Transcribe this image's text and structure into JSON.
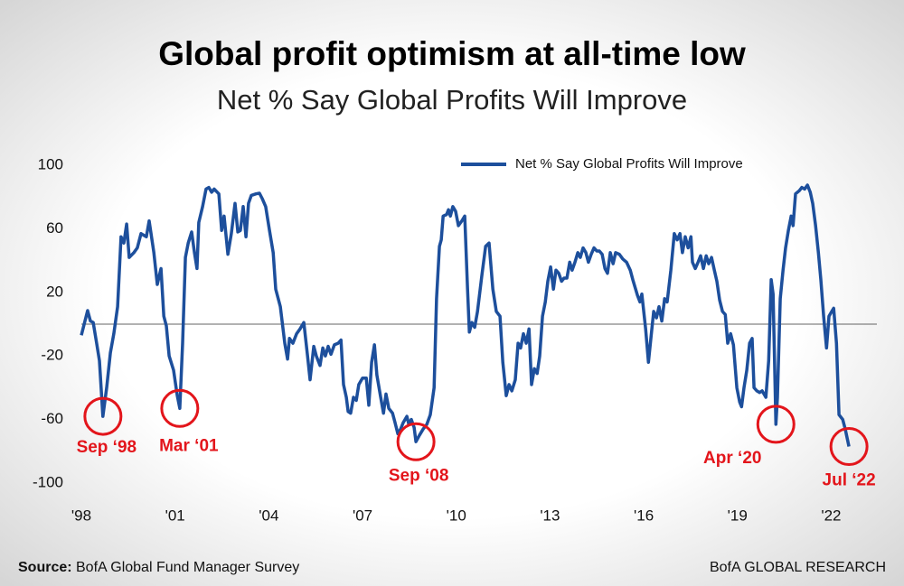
{
  "chart_data": {
    "type": "line",
    "title": "Global profit optimism at all-time low",
    "subtitle": "Net % Say Global Profits Will Improve",
    "source_label": "Source:",
    "source": "BofA Global Fund Manager Survey",
    "brand": "BofA GLOBAL RESEARCH",
    "legend": "top-right",
    "grid": false,
    "reference_line": 0,
    "xlim": [
      1998,
      2023
    ],
    "ylim": [
      -100,
      100
    ],
    "yticks": [
      100,
      60,
      20,
      -20,
      -60,
      -100
    ],
    "xticks": [
      {
        "value": 1998,
        "label": "'98"
      },
      {
        "value": 2001,
        "label": "'01"
      },
      {
        "value": 2004,
        "label": "'04"
      },
      {
        "value": 2007,
        "label": "'07"
      },
      {
        "value": 2010,
        "label": "'10"
      },
      {
        "value": 2013,
        "label": "'13"
      },
      {
        "value": 2016,
        "label": "'16"
      },
      {
        "value": 2019,
        "label": "'19"
      },
      {
        "value": 2022,
        "label": "'22"
      }
    ],
    "x": [
      1998.0,
      1998.2,
      1998.29,
      1998.38,
      1998.49,
      1998.58,
      1998.69,
      1998.81,
      1998.93,
      1999.04,
      1999.16,
      1999.27,
      1999.36,
      1999.45,
      1999.53,
      1999.68,
      1999.79,
      1999.91,
      2000.08,
      2000.17,
      2000.32,
      2000.43,
      2000.55,
      2000.64,
      2000.72,
      2000.81,
      2000.95,
      2001.07,
      2001.15,
      2001.24,
      2001.33,
      2001.42,
      2001.53,
      2001.62,
      2001.7,
      2001.76,
      2001.88,
      2001.99,
      2002.08,
      2002.17,
      2002.25,
      2002.4,
      2002.49,
      2002.57,
      2002.69,
      2002.8,
      2002.92,
      2003.01,
      2003.09,
      2003.18,
      2003.27,
      2003.35,
      2003.44,
      2003.59,
      2003.7,
      2003.79,
      2003.9,
      2004.02,
      2004.14,
      2004.22,
      2004.37,
      2004.51,
      2004.6,
      2004.66,
      2004.77,
      2004.89,
      2005.0,
      2005.12,
      2005.24,
      2005.32,
      2005.44,
      2005.52,
      2005.64,
      2005.73,
      2005.81,
      2005.9,
      2005.99,
      2006.1,
      2006.22,
      2006.31,
      2006.39,
      2006.48,
      2006.54,
      2006.62,
      2006.71,
      2006.8,
      2006.88,
      2007.0,
      2007.12,
      2007.2,
      2007.29,
      2007.38,
      2007.46,
      2007.58,
      2007.67,
      2007.75,
      2007.84,
      2007.96,
      2008.04,
      2008.13,
      2008.22,
      2008.3,
      2008.42,
      2008.48,
      2008.56,
      2008.65,
      2008.71,
      2008.82,
      2008.94,
      2009.06,
      2009.17,
      2009.29,
      2009.37,
      2009.46,
      2009.52,
      2009.58,
      2009.69,
      2009.75,
      2009.81,
      2009.89,
      2009.98,
      2010.07,
      2010.18,
      2010.27,
      2010.36,
      2010.42,
      2010.5,
      2010.59,
      2010.68,
      2010.82,
      2010.94,
      2011.05,
      2011.17,
      2011.28,
      2011.4,
      2011.49,
      2011.6,
      2011.69,
      2011.78,
      2011.89,
      2011.98,
      2012.06,
      2012.15,
      2012.24,
      2012.33,
      2012.41,
      2012.5,
      2012.59,
      2012.67,
      2012.76,
      2012.85,
      2012.93,
      2013.02,
      2013.11,
      2013.19,
      2013.28,
      2013.37,
      2013.45,
      2013.54,
      2013.63,
      2013.71,
      2013.8,
      2013.89,
      2013.97,
      2014.06,
      2014.15,
      2014.23,
      2014.32,
      2014.41,
      2014.5,
      2014.58,
      2014.67,
      2014.76,
      2014.84,
      2014.93,
      2015.02,
      2015.1,
      2015.22,
      2015.33,
      2015.45,
      2015.57,
      2015.65,
      2015.8,
      2015.88,
      2015.94,
      2016.06,
      2016.15,
      2016.23,
      2016.32,
      2016.41,
      2016.49,
      2016.58,
      2016.67,
      2016.75,
      2016.87,
      2016.98,
      2017.07,
      2017.16,
      2017.24,
      2017.33,
      2017.42,
      2017.51,
      2017.56,
      2017.65,
      2017.74,
      2017.82,
      2017.91,
      2018.0,
      2018.08,
      2018.17,
      2018.26,
      2018.34,
      2018.43,
      2018.52,
      2018.61,
      2018.69,
      2018.78,
      2018.87,
      2018.98,
      2019.07,
      2019.13,
      2019.21,
      2019.3,
      2019.39,
      2019.47,
      2019.53,
      2019.62,
      2019.71,
      2019.79,
      2019.91,
      2020.0,
      2020.08,
      2020.14,
      2020.23,
      2020.28,
      2020.37,
      2020.46,
      2020.54,
      2020.63,
      2020.72,
      2020.78,
      2020.86,
      2020.98,
      2021.06,
      2021.15,
      2021.24,
      2021.33,
      2021.41,
      2021.5,
      2021.59,
      2021.67,
      2021.76,
      2021.85,
      2021.93,
      2022.02,
      2022.08,
      2022.17,
      2022.25,
      2022.37,
      2022.45,
      2022.57
    ],
    "series": [
      {
        "name": "Net % Say Global Profits Will Improve",
        "color": "#1d4f9c",
        "values": [
          -7,
          8.5,
          2,
          1,
          -12,
          -23,
          -58,
          -40,
          -18,
          -6,
          11,
          55,
          51,
          63,
          42,
          45,
          48,
          57,
          55,
          65,
          45,
          25,
          35,
          5,
          -1,
          -20,
          -29,
          -45,
          -53,
          -12,
          42,
          51,
          58,
          45,
          35,
          64,
          74,
          85,
          86,
          83,
          85,
          82,
          59,
          68,
          44,
          57,
          76,
          58,
          59,
          74,
          55,
          76,
          81,
          82,
          82.4,
          79,
          74,
          59,
          45,
          22,
          11,
          -12,
          -22,
          -9,
          -12,
          -6,
          -3,
          1,
          -20,
          -35,
          -14,
          -20,
          -26,
          -15,
          -20,
          -14,
          -19,
          -13,
          -12,
          -10,
          -38,
          -46,
          -55,
          -56,
          -46,
          -48,
          -38,
          -34,
          -34,
          -51,
          -24,
          -13,
          -32,
          -46,
          -56,
          -44,
          -53,
          -56,
          -62,
          -69,
          -66,
          -62,
          -58,
          -63,
          -60,
          -65,
          -74,
          -70,
          -66,
          -63,
          -57,
          -40,
          16,
          49,
          53,
          68,
          69,
          72,
          68,
          74,
          71,
          62,
          65,
          68,
          22,
          -5,
          1,
          -2,
          8,
          31,
          49,
          51,
          22,
          8,
          5,
          -24,
          -45,
          -38,
          -42,
          -35,
          -12,
          -15,
          -6,
          -12,
          -3,
          -38,
          -28,
          -31,
          -20,
          5,
          14,
          27,
          36,
          22,
          34,
          32,
          27,
          29,
          29,
          39,
          34,
          39,
          45,
          42,
          48,
          45,
          39,
          44,
          48,
          46,
          46,
          44,
          35,
          32,
          45,
          38,
          45,
          44,
          41,
          39,
          34,
          28,
          18,
          14,
          19,
          -3,
          -24,
          -9,
          8,
          4,
          11,
          2,
          16,
          14,
          34,
          57,
          53,
          57,
          45,
          55,
          48,
          55,
          39,
          35,
          39,
          43,
          35,
          43,
          38,
          42,
          34,
          27,
          15,
          8,
          6,
          -12,
          -6,
          -13,
          -40,
          -49,
          -52,
          -40,
          -29,
          -12,
          -9,
          -40,
          -42,
          -43,
          -42,
          -46,
          -23,
          28,
          19,
          -63,
          -46,
          16,
          34,
          48,
          59,
          68,
          62,
          82,
          84,
          86,
          85,
          87.5,
          83,
          76,
          62,
          45,
          28,
          5,
          -15,
          5,
          8,
          10,
          -12,
          -57,
          -60,
          -66,
          -77
        ]
      }
    ],
    "annotations": [
      {
        "text": "Sep ‘98",
        "x": 1998.69,
        "y": -58
      },
      {
        "text": "Mar ‘01",
        "x": 2001.15,
        "y": -53
      },
      {
        "text": "Sep ‘08",
        "x": 2008.71,
        "y": -74
      },
      {
        "text": "Apr ‘20",
        "x": 2020.23,
        "y": -63
      },
      {
        "text": "Jul ‘22",
        "x": 2022.57,
        "y": -77
      }
    ]
  }
}
